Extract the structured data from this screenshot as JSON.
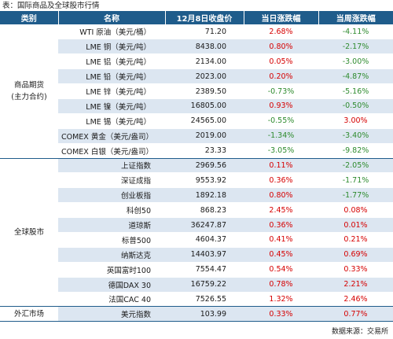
{
  "caption": "表：国际商品及全球股市行情",
  "headers": {
    "category": "类别",
    "name": "名称",
    "close": "12月8日收盘价",
    "day": "当日涨跌幅",
    "week": "当周涨跌幅"
  },
  "groups": [
    {
      "category": "商品期货\n(主力合约)",
      "rows": [
        {
          "name": "WTI 原油（美元/桶）",
          "close": "71.20",
          "day": "2.68%",
          "week": "-4.11%"
        },
        {
          "name": "LME 铜（美元/吨）",
          "close": "8438.00",
          "day": "0.80%",
          "week": "-2.17%"
        },
        {
          "name": "LME 铝（美元/吨）",
          "close": "2134.00",
          "day": "0.05%",
          "week": "-3.00%"
        },
        {
          "name": "LME 铅（美元/吨）",
          "close": "2023.00",
          "day": "0.20%",
          "week": "-4.87%"
        },
        {
          "name": "LME 锌（美元/吨）",
          "close": "2389.50",
          "day": "-0.73%",
          "week": "-5.16%"
        },
        {
          "name": "LME 镍（美元/吨）",
          "close": "16805.00",
          "day": "0.93%",
          "week": "-0.50%"
        },
        {
          "name": "LME 锡（美元/吨）",
          "close": "24565.00",
          "day": "-0.55%",
          "week": "3.00%"
        },
        {
          "name": "COMEX 黄金（美元/盎司）",
          "close": "2019.00",
          "day": "-1.34%",
          "week": "-3.40%"
        },
        {
          "name": "COMEX 白银（美元/盎司）",
          "close": "23.33",
          "day": "-3.05%",
          "week": "-9.82%"
        }
      ]
    },
    {
      "category": "全球股市",
      "rows": [
        {
          "name": "上证指数",
          "close": "2969.56",
          "day": "0.11%",
          "week": "-2.05%"
        },
        {
          "name": "深证成指",
          "close": "9553.92",
          "day": "0.36%",
          "week": "-1.71%"
        },
        {
          "name": "创业板指",
          "close": "1892.18",
          "day": "0.80%",
          "week": "-1.77%"
        },
        {
          "name": "科创50",
          "close": "868.23",
          "day": "2.45%",
          "week": "0.08%"
        },
        {
          "name": "道琼斯",
          "close": "36247.87",
          "day": "0.36%",
          "week": "0.01%"
        },
        {
          "name": "标普500",
          "close": "4604.37",
          "day": "0.41%",
          "week": "0.21%"
        },
        {
          "name": "纳斯达克",
          "close": "14403.97",
          "day": "0.45%",
          "week": "0.69%"
        },
        {
          "name": "英国富时100",
          "close": "7554.47",
          "day": "0.54%",
          "week": "0.33%"
        },
        {
          "name": "德国DAX 30",
          "close": "16759.22",
          "day": "0.78%",
          "week": "2.21%"
        },
        {
          "name": "法国CAC 40",
          "close": "7526.55",
          "day": "1.32%",
          "week": "2.46%"
        }
      ]
    },
    {
      "category": "外汇市场",
      "rows": [
        {
          "name": "美元指数",
          "close": "103.99",
          "day": "0.33%",
          "week": "0.77%"
        }
      ]
    }
  ],
  "source": "数据来源：交易所",
  "colors": {
    "header_bg": "#1f5c8b",
    "stripe": "#dce6f1",
    "up": "#d60000",
    "down": "#2e8b2e"
  }
}
